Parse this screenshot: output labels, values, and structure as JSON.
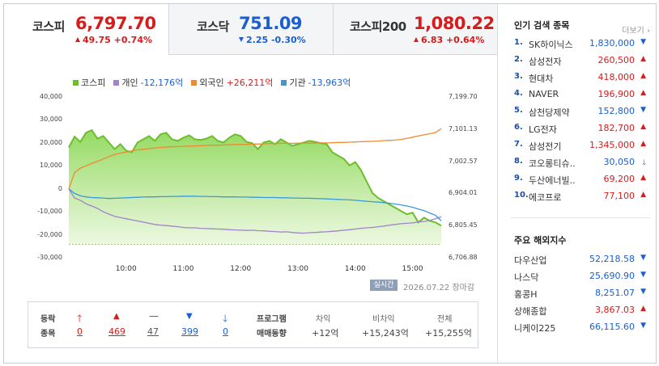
{
  "tabs": [
    {
      "name": "코스피",
      "value": "6,797.70",
      "change": "49.75 +0.74%",
      "dir": "up"
    },
    {
      "name": "코스닥",
      "value": "751.09",
      "change": "2.25 -0.30%",
      "dir": "down"
    },
    {
      "name": "코스피200",
      "value": "1,080.22",
      "change": "6.83 +0.64%",
      "dir": "up"
    }
  ],
  "chart_data": {
    "type": "area",
    "legend": [
      {
        "name": "코스피",
        "value": "",
        "color": "#6cbf2a"
      },
      {
        "name": "개인",
        "value": "-12,176억",
        "color": "#a183c9"
      },
      {
        "name": "외국인",
        "value": "+26,211억",
        "color": "#f08a2e"
      },
      {
        "name": "기관",
        "value": "-13,963억",
        "color": "#3a9ad9"
      }
    ],
    "y_left_ticks": [
      "40,000",
      "30,000",
      "20,000",
      "10,000",
      "0",
      "-10,000",
      "-20,000",
      "-30,000"
    ],
    "y_left_range": [
      -30000,
      40000
    ],
    "y_right_ticks": [
      "7,199.70",
      "7,101.13",
      "7,002.57",
      "6,904.01",
      "6,805.45",
      "6,706.88"
    ],
    "y_right_range": [
      6706.88,
      7199.7
    ],
    "x_ticks": [
      "10:00",
      "11:00",
      "12:00",
      "13:00",
      "14:00",
      "15:00"
    ],
    "x_range": [
      9.0,
      15.5
    ],
    "x": [
      9.0,
      9.1,
      9.2,
      9.3,
      9.4,
      9.5,
      9.6,
      9.7,
      9.8,
      9.9,
      10.0,
      10.1,
      10.2,
      10.3,
      10.4,
      10.5,
      10.6,
      10.7,
      10.8,
      10.9,
      11.0,
      11.1,
      11.2,
      11.3,
      11.4,
      11.5,
      11.6,
      11.7,
      11.8,
      11.9,
      12.0,
      12.1,
      12.2,
      12.3,
      12.4,
      12.5,
      12.6,
      12.7,
      12.8,
      12.9,
      13.0,
      13.1,
      13.2,
      13.3,
      13.4,
      13.5,
      13.6,
      13.7,
      13.8,
      13.9,
      14.0,
      14.1,
      14.2,
      14.3,
      14.4,
      14.5,
      14.6,
      14.7,
      14.8,
      14.9,
      15.0,
      15.1,
      15.2,
      15.3,
      15.4,
      15.5
    ],
    "kospi": [
      7045,
      7078,
      7062,
      7090,
      7098,
      7072,
      7080,
      7060,
      7040,
      7055,
      7035,
      7030,
      7060,
      7070,
      7080,
      7065,
      7085,
      7090,
      7070,
      7065,
      7075,
      7082,
      7070,
      7068,
      7072,
      7080,
      7065,
      7060,
      7075,
      7085,
      7080,
      7062,
      7058,
      7040,
      7060,
      7065,
      7055,
      7070,
      7060,
      7050,
      7055,
      7060,
      7065,
      7062,
      7058,
      7055,
      7030,
      7020,
      7010,
      6990,
      7000,
      6975,
      6940,
      6905,
      6890,
      6880,
      6870,
      6860,
      6850,
      6840,
      6845,
      6815,
      6830,
      6820,
      6815,
      6805
    ],
    "series": [
      {
        "name": "개인",
        "values": [
          0,
          -4000,
          -5000,
          -6500,
          -7500,
          -8500,
          -10000,
          -11000,
          -12000,
          -12500,
          -13000,
          -13500,
          -14000,
          -14500,
          -15000,
          -15500,
          -15800,
          -16000,
          -16200,
          -16500,
          -16800,
          -17000,
          -17000,
          -17200,
          -17300,
          -17400,
          -17500,
          -17600,
          -17800,
          -17900,
          -18000,
          -18100,
          -18000,
          -18200,
          -18300,
          -18500,
          -18600,
          -18800,
          -18700,
          -19000,
          -19200,
          -19300,
          -19100,
          -19000,
          -18800,
          -18700,
          -18500,
          -18300,
          -18000,
          -17800,
          -17500,
          -17200,
          -17000,
          -16800,
          -16500,
          -16200,
          -15800,
          -15500,
          -15200,
          -15000,
          -14800,
          -14500,
          -14200,
          -13800,
          -13000,
          -12176
        ]
      },
      {
        "name": "외국인",
        "values": [
          0,
          7000,
          9000,
          10000,
          11000,
          12000,
          13000,
          14000,
          15000,
          15500,
          16000,
          16500,
          17000,
          17200,
          17500,
          17800,
          18000,
          18200,
          18300,
          18400,
          18500,
          18600,
          18700,
          18800,
          18900,
          19000,
          19000,
          19100,
          19200,
          19300,
          19300,
          19400,
          19500,
          19500,
          19600,
          19700,
          19700,
          19800,
          19800,
          19800,
          19900,
          19900,
          19800,
          19900,
          20000,
          20000,
          20100,
          20200,
          20200,
          20300,
          20400,
          20500,
          20600,
          20700,
          20800,
          21000,
          21100,
          21200,
          21500,
          22000,
          22500,
          23000,
          23500,
          24000,
          24500,
          26211
        ]
      },
      {
        "name": "기관",
        "values": [
          0,
          -2000,
          -3000,
          -3500,
          -3800,
          -3900,
          -4000,
          -4200,
          -4100,
          -4000,
          -3900,
          -3800,
          -3700,
          -3600,
          -3500,
          -3500,
          -3400,
          -3400,
          -3300,
          -3300,
          -3200,
          -3200,
          -3200,
          -3300,
          -3300,
          -3400,
          -3400,
          -3500,
          -3500,
          -3500,
          -3600,
          -3600,
          -3700,
          -3700,
          -3800,
          -3800,
          -3800,
          -3900,
          -3900,
          -4000,
          -4000,
          -4100,
          -4100,
          -4200,
          -4300,
          -4400,
          -4500,
          -4600,
          -4700,
          -4800,
          -5000,
          -5200,
          -5400,
          -5600,
          -5800,
          -6000,
          -6300,
          -6600,
          -7000,
          -7500,
          -8000,
          -8800,
          -9500,
          -10500,
          -11500,
          -13963
        ]
      }
    ],
    "baseline_right": 6748.0
  },
  "footer": {
    "badge": "실시간",
    "date": "2026.07.22",
    "status": "장마감"
  },
  "breadth": {
    "label1": "등락",
    "label2": "종목",
    "items": [
      {
        "icon": "up-arrow",
        "value": "0",
        "color": "#d81b1b"
      },
      {
        "icon": "up-triangle",
        "value": "469",
        "color": "#d81b1b"
      },
      {
        "icon": "dash",
        "value": "47",
        "color": "#555"
      },
      {
        "icon": "down-triangle",
        "value": "399",
        "color": "#1a5fd1"
      },
      {
        "icon": "down-arrow",
        "value": "0",
        "color": "#1a5fd1"
      }
    ]
  },
  "program": {
    "label1": "프로그램",
    "label2": "매매동향",
    "cols": [
      {
        "head": "차익",
        "value": "+12억"
      },
      {
        "head": "비차익",
        "value": "+15,243억"
      },
      {
        "head": "전체",
        "value": "+15,255억"
      }
    ]
  },
  "popular": {
    "title": "인기 검색 종목",
    "more": "더보기",
    "items": [
      {
        "rank": "1.",
        "name": "SK하이닉스",
        "value": "1,830,000",
        "dir": "down"
      },
      {
        "rank": "2.",
        "name": "삼성전자",
        "value": "260,500",
        "dir": "up"
      },
      {
        "rank": "3.",
        "name": "현대차",
        "value": "418,000",
        "dir": "up"
      },
      {
        "rank": "4.",
        "name": "NAVER",
        "value": "196,900",
        "dir": "up"
      },
      {
        "rank": "5.",
        "name": "삼천당제약",
        "value": "152,800",
        "dir": "down"
      },
      {
        "rank": "6.",
        "name": "LG전자",
        "value": "182,700",
        "dir": "up"
      },
      {
        "rank": "7.",
        "name": "삼성전기",
        "value": "1,345,000",
        "dir": "up"
      },
      {
        "rank": "8.",
        "name": "코오롱티슈..",
        "value": "30,050",
        "dir": "down-arrow"
      },
      {
        "rank": "9.",
        "name": "두산에너빌..",
        "value": "69,200",
        "dir": "up"
      },
      {
        "rank": "10.",
        "name": "에코프로",
        "value": "77,100",
        "dir": "up"
      }
    ]
  },
  "world": {
    "title": "주요 해외지수",
    "items": [
      {
        "name": "다우산업",
        "value": "52,218.58",
        "dir": "down"
      },
      {
        "name": "나스닥",
        "value": "25,690.90",
        "dir": "down"
      },
      {
        "name": "홍콩H",
        "value": "8,251.07",
        "dir": "down"
      },
      {
        "name": "상해종합",
        "value": "3,867.03",
        "dir": "up"
      },
      {
        "name": "니케이225",
        "value": "66,115.60",
        "dir": "down"
      }
    ]
  }
}
